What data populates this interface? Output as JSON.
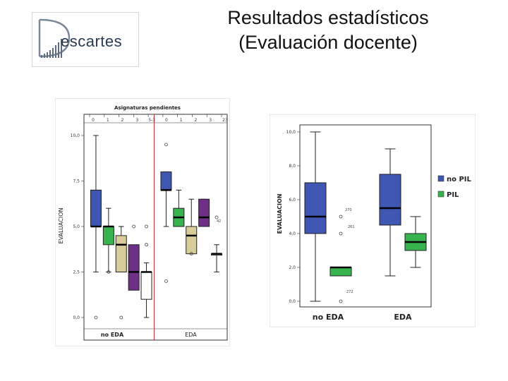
{
  "slide": {
    "title_line1": "Resultados estadísticos",
    "title_line2": "(Evaluación docente)"
  },
  "logo": {
    "text": "escartes",
    "icon": "descartes-d-logo-icon"
  },
  "colors": {
    "blue": "#3f57b2",
    "green": "#38b44e",
    "tan": "#d8cd9a",
    "purple": "#6e2f86",
    "white": "#ffffff",
    "separator": "#c23030"
  },
  "chart_data": [
    {
      "type": "boxplot",
      "title": "Asignaturas pendientes",
      "ylabel": "EVALUACION",
      "ylim": [
        0,
        10
      ],
      "yticks": [
        "0,0",
        "2,5",
        "5,0",
        "7,5",
        "10,0"
      ],
      "top_ticks": [
        "0",
        "1",
        "2",
        "3",
        "5-3",
        "0",
        "1",
        "2",
        "3",
        "23"
      ],
      "groups": [
        "no EDA",
        "EDA"
      ],
      "grid": false,
      "series": [
        {
          "group": "no EDA",
          "color": "#3f57b2",
          "whisker_low": 2.5,
          "q1": 5.0,
          "median": 5.0,
          "q3": 7.0,
          "whisker_high": 10.0,
          "outliers": [
            0.0
          ]
        },
        {
          "group": "no EDA",
          "color": "#38b44e",
          "whisker_low": 2.5,
          "q1": 4.0,
          "median": 5.0,
          "q3": 5.0,
          "whisker_high": 6.0,
          "outliers": [
            2.5
          ]
        },
        {
          "group": "no EDA",
          "color": "#d8cd9a",
          "whisker_low": 2.5,
          "q1": 2.5,
          "median": 4.0,
          "q3": 4.5,
          "whisker_high": 5.0,
          "outliers": [
            0.0
          ]
        },
        {
          "group": "no EDA",
          "color": "#6e2f86",
          "whisker_low": null,
          "q1": 1.5,
          "median": 2.5,
          "q3": 4.0,
          "whisker_high": null,
          "outliers": [
            5.0
          ]
        },
        {
          "group": "no EDA",
          "color": "#ffffff",
          "whisker_low": 0.0,
          "q1": 1.0,
          "median": 2.5,
          "q3": 2.5,
          "whisker_high": 3.0,
          "outliers": [
            4.0,
            5.0
          ]
        },
        {
          "group": "EDA",
          "color": "#3f57b2",
          "whisker_low": 5.0,
          "q1": 7.0,
          "median": 7.0,
          "q3": 8.0,
          "whisker_high": 8.0,
          "outliers": [
            9.5,
            2.0
          ]
        },
        {
          "group": "EDA",
          "color": "#38b44e",
          "whisker_low": 5.0,
          "q1": 5.0,
          "median": 5.5,
          "q3": 6.0,
          "whisker_high": 7.0,
          "outliers": []
        },
        {
          "group": "EDA",
          "color": "#d8cd9a",
          "whisker_low": 3.5,
          "q1": 3.5,
          "median": 4.5,
          "q3": 5.0,
          "whisker_high": 6.5,
          "outliers": [
            3.5
          ]
        },
        {
          "group": "EDA",
          "color": "#6e2f86",
          "whisker_low": 5.0,
          "q1": 5.0,
          "median": 5.5,
          "q3": 6.5,
          "whisker_high": 6.5,
          "outliers": []
        },
        {
          "group": "EDA",
          "color": "#ffffff",
          "whisker_low": 2.5,
          "q1": 3.5,
          "median": 3.5,
          "q3": 3.5,
          "whisker_high": 4.0,
          "outliers": [
            5.5
          ]
        }
      ],
      "annotations": [
        "42"
      ]
    },
    {
      "type": "boxplot",
      "ylabel": "EVALUACION",
      "ylim": [
        0,
        10
      ],
      "yticks": [
        "0,0",
        "2,0",
        "4,0",
        "6,0",
        "8,0",
        "10,0"
      ],
      "categories": [
        "no EDA",
        "EDA"
      ],
      "legend_position": "right",
      "legend": [
        {
          "name": "no PIL",
          "color": "#3f57b2"
        },
        {
          "name": "PIL",
          "color": "#38b44e"
        }
      ],
      "grid": false,
      "series": [
        {
          "category": "no EDA",
          "legend": "no PIL",
          "color": "#3f57b2",
          "whisker_low": 0.0,
          "q1": 4.0,
          "median": 5.0,
          "q3": 7.0,
          "whisker_high": 10.0,
          "outliers": []
        },
        {
          "category": "no EDA",
          "legend": "PIL",
          "color": "#38b44e",
          "whisker_low": 1.5,
          "q1": 1.5,
          "median": 2.0,
          "q3": 2.0,
          "whisker_high": 2.0,
          "outliers": [
            5.0,
            4.0,
            0.0
          ]
        },
        {
          "category": "EDA",
          "legend": "no PIL",
          "color": "#3f57b2",
          "whisker_low": 1.5,
          "q1": 4.5,
          "median": 5.5,
          "q3": 7.5,
          "whisker_high": 9.0,
          "outliers": []
        },
        {
          "category": "EDA",
          "legend": "PIL",
          "color": "#38b44e",
          "whisker_low": 2.0,
          "q1": 3.0,
          "median": 3.5,
          "q3": 4.0,
          "whisker_high": 5.0,
          "outliers": []
        }
      ],
      "annotations": [
        "270",
        "261",
        "272"
      ]
    }
  ]
}
